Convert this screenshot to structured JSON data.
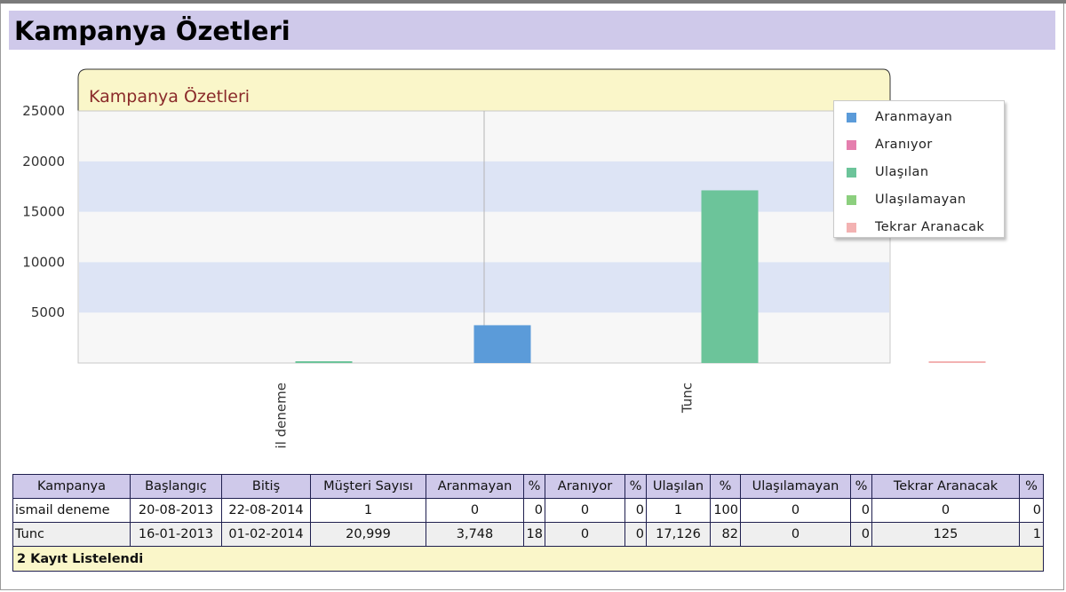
{
  "page": {
    "title": "Kampanya Özetleri"
  },
  "chart_data": {
    "type": "bar",
    "title": "Kampanya Özetleri",
    "categories": [
      "ismail deneme",
      "Tunc"
    ],
    "category_labels_visible": [
      "il deneme",
      "Tunc"
    ],
    "ylim": [
      0,
      25000
    ],
    "yticks": [
      5000,
      10000,
      15000,
      20000,
      25000
    ],
    "grid": true,
    "legend_position": "top-right",
    "series": [
      {
        "name": "Aranmayan",
        "color": "#5b9bd9",
        "values": [
          0,
          3748
        ]
      },
      {
        "name": "Aranıyor",
        "color": "#e57fae",
        "values": [
          0,
          0
        ]
      },
      {
        "name": "Ulaşılan",
        "color": "#6cc49a",
        "values": [
          1,
          17126
        ]
      },
      {
        "name": "Ulaşılamayan",
        "color": "#8ccf7e",
        "values": [
          0,
          0
        ]
      },
      {
        "name": "Tekrar Aranacak",
        "color": "#f3b2b2",
        "values": [
          0,
          125
        ]
      }
    ]
  },
  "table": {
    "headers": [
      "Kampanya",
      "Başlangıç",
      "Bitiş",
      "Müşteri Sayısı",
      "Aranmayan",
      "%",
      "Aranıyor",
      "%",
      "Ulaşılan",
      "%",
      "Ulaşılamayan",
      "%",
      "Tekrar Aranacak",
      "%"
    ],
    "rows": [
      [
        "ismail deneme",
        "20-08-2013",
        "22-08-2014",
        "1",
        "0",
        "0",
        "0",
        "0",
        "1",
        "100",
        "0",
        "0",
        "0",
        "0"
      ],
      [
        "Tunc",
        "16-01-2013",
        "01-02-2014",
        "20,999",
        "3,748",
        "18",
        "0",
        "0",
        "17,126",
        "82",
        "0",
        "0",
        "125",
        "1"
      ]
    ],
    "footer": "2 Kayıt Listelendi"
  }
}
